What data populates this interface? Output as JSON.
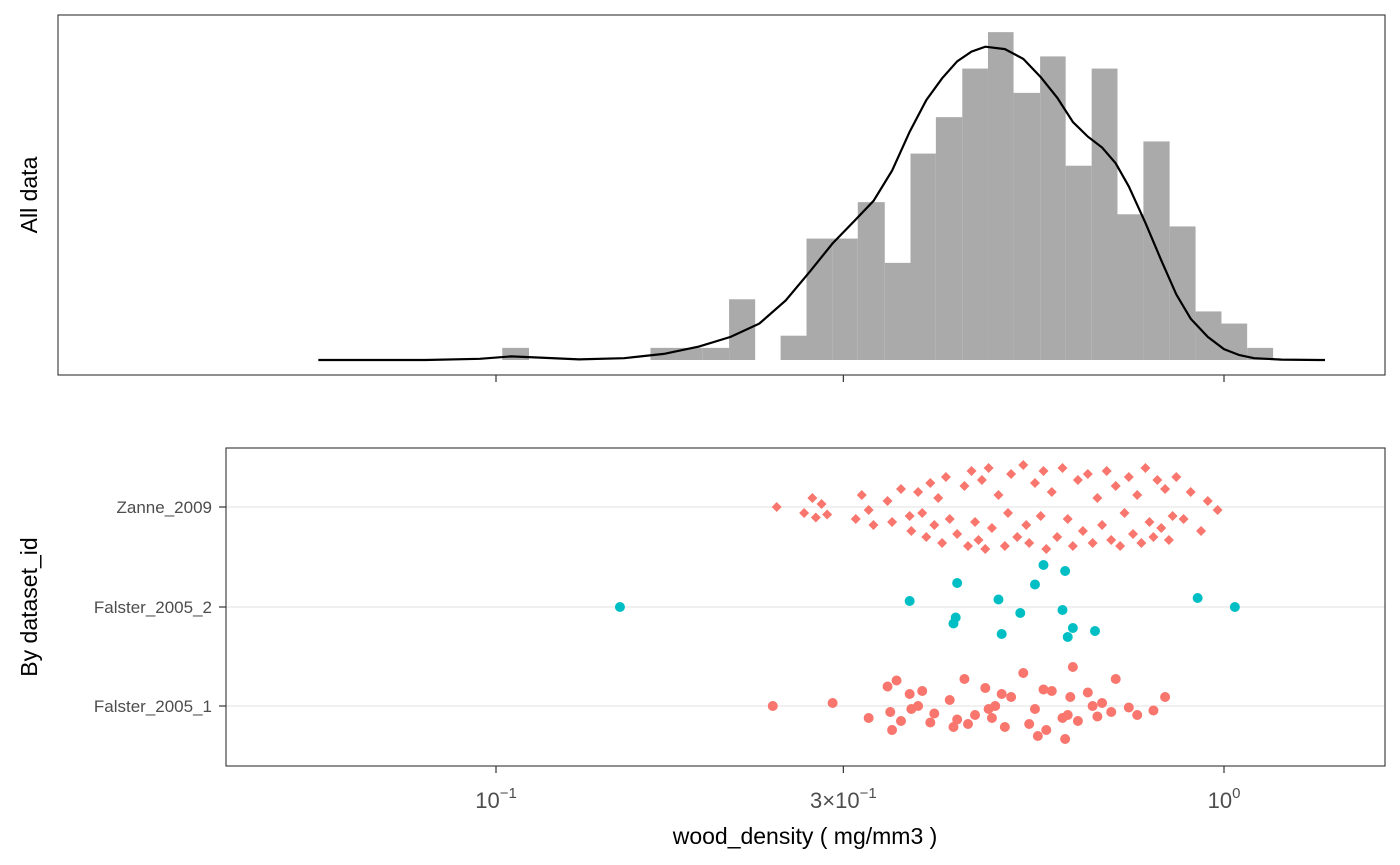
{
  "chart_data": [
    {
      "type": "histogram",
      "panel": "top",
      "ylabel": "All data",
      "x_scale": "log10",
      "xlim": [
        0.05,
        1.55
      ],
      "x_ticks": [
        0.1,
        0.3,
        1.0
      ],
      "bar_color": "#aaaaaa",
      "density_color": "#000000",
      "bins": [
        {
          "x0": 0.102,
          "x1": 0.111,
          "count": 1
        },
        {
          "x0": 0.163,
          "x1": 0.177,
          "count": 1
        },
        {
          "x0": 0.177,
          "x1": 0.192,
          "count": 1
        },
        {
          "x0": 0.192,
          "x1": 0.209,
          "count": 1
        },
        {
          "x0": 0.209,
          "x1": 0.227,
          "count": 5
        },
        {
          "x0": 0.227,
          "x1": 0.246,
          "count": 0
        },
        {
          "x0": 0.246,
          "x1": 0.267,
          "count": 2
        },
        {
          "x0": 0.267,
          "x1": 0.29,
          "count": 10
        },
        {
          "x0": 0.29,
          "x1": 0.314,
          "count": 10
        },
        {
          "x0": 0.314,
          "x1": 0.342,
          "count": 13
        },
        {
          "x0": 0.342,
          "x1": 0.371,
          "count": 8
        },
        {
          "x0": 0.371,
          "x1": 0.402,
          "count": 17
        },
        {
          "x0": 0.402,
          "x1": 0.437,
          "count": 20
        },
        {
          "x0": 0.437,
          "x1": 0.474,
          "count": 24
        },
        {
          "x0": 0.474,
          "x1": 0.514,
          "count": 27
        },
        {
          "x0": 0.514,
          "x1": 0.559,
          "count": 22
        },
        {
          "x0": 0.559,
          "x1": 0.606,
          "count": 25
        },
        {
          "x0": 0.606,
          "x1": 0.658,
          "count": 16
        },
        {
          "x0": 0.658,
          "x1": 0.714,
          "count": 24
        },
        {
          "x0": 0.714,
          "x1": 0.775,
          "count": 12
        },
        {
          "x0": 0.775,
          "x1": 0.842,
          "count": 18
        },
        {
          "x0": 0.842,
          "x1": 0.914,
          "count": 11
        },
        {
          "x0": 0.914,
          "x1": 0.992,
          "count": 4
        },
        {
          "x0": 0.992,
          "x1": 1.076,
          "count": 3
        },
        {
          "x0": 1.076,
          "x1": 1.168,
          "count": 1
        }
      ],
      "density": {
        "x": [
          0.057,
          0.08,
          0.095,
          0.105,
          0.115,
          0.13,
          0.15,
          0.17,
          0.19,
          0.21,
          0.23,
          0.25,
          0.27,
          0.29,
          0.31,
          0.33,
          0.35,
          0.37,
          0.39,
          0.41,
          0.43,
          0.45,
          0.47,
          0.5,
          0.53,
          0.56,
          0.59,
          0.62,
          0.65,
          0.68,
          0.71,
          0.74,
          0.78,
          0.82,
          0.86,
          0.9,
          0.95,
          1.0,
          1.05,
          1.1,
          1.2,
          1.35,
          1.5
        ],
        "y": [
          0.0,
          0.0,
          0.1,
          0.3,
          0.2,
          0.05,
          0.15,
          0.5,
          1.1,
          1.9,
          3.0,
          4.9,
          7.3,
          9.6,
          11.4,
          13.1,
          15.6,
          18.8,
          21.4,
          23.2,
          24.6,
          25.4,
          25.8,
          25.6,
          24.8,
          23.3,
          21.6,
          19.6,
          18.4,
          17.5,
          16.2,
          14.3,
          11.3,
          8.2,
          5.4,
          3.4,
          1.9,
          0.9,
          0.4,
          0.15,
          0.03,
          0.0,
          0.0
        ]
      },
      "ylim": [
        -1.2,
        28
      ]
    },
    {
      "type": "scatter",
      "panel": "bottom",
      "ylabel": "By  dataset_id",
      "xlabel": "wood_density  ( mg/mm3 )",
      "x_scale": "log10",
      "xlim": [
        0.05,
        1.55
      ],
      "x_tick_labels": [
        "10",
        "3×10",
        "10"
      ],
      "x_tick_exponents": [
        "−1",
        "−1",
        "0"
      ],
      "x_ticks": [
        0.1,
        0.3,
        1.0
      ],
      "categories": [
        "Zanne_2009",
        "Falster_2005_2",
        "Falster_2005_1"
      ],
      "series": [
        {
          "name": "Zanne_2009",
          "color": "#f8766d",
          "marker": "diamond",
          "x": [
            0.243,
            0.265,
            0.272,
            0.275,
            0.28,
            0.285,
            0.312,
            0.318,
            0.325,
            0.33,
            0.345,
            0.35,
            0.36,
            0.37,
            0.372,
            0.38,
            0.385,
            0.39,
            0.395,
            0.4,
            0.405,
            0.41,
            0.415,
            0.42,
            0.43,
            0.44,
            0.445,
            0.45,
            0.455,
            0.46,
            0.465,
            0.47,
            0.475,
            0.48,
            0.49,
            0.5,
            0.505,
            0.51,
            0.52,
            0.53,
            0.535,
            0.54,
            0.55,
            0.56,
            0.565,
            0.57,
            0.58,
            0.59,
            0.6,
            0.61,
            0.62,
            0.63,
            0.64,
            0.65,
            0.66,
            0.67,
            0.68,
            0.69,
            0.7,
            0.71,
            0.72,
            0.73,
            0.74,
            0.75,
            0.76,
            0.77,
            0.78,
            0.79,
            0.8,
            0.81,
            0.82,
            0.83,
            0.84,
            0.85,
            0.86,
            0.88,
            0.9,
            0.93,
            0.95,
            0.98
          ],
          "jitter": [
            0,
            0.2,
            -0.3,
            0.35,
            -0.1,
            0.25,
            0.4,
            -0.4,
            0.1,
            0.6,
            -0.2,
            0.5,
            -0.6,
            0.3,
            0.8,
            -0.5,
            0.2,
            1.0,
            -0.8,
            0.6,
            -0.3,
            1.2,
            -1.0,
            0.4,
            0.9,
            -0.7,
            1.3,
            -1.2,
            0.5,
            1.1,
            -0.9,
            1.4,
            -1.3,
            0.7,
            -0.4,
            1.3,
            0.2,
            -1.1,
            1.0,
            -1.4,
            0.6,
            1.2,
            -0.8,
            0.3,
            -1.2,
            1.4,
            -0.5,
            1.0,
            -1.3,
            0.4,
            1.3,
            -0.9,
            0.8,
            -1.1,
            1.2,
            -0.3,
            0.6,
            -1.2,
            1.1,
            -0.7,
            1.3,
            0.2,
            -1.0,
            0.9,
            -0.4,
            1.2,
            -1.3,
            0.5,
            1.0,
            -0.9,
            0.7,
            -0.6,
            1.1,
            0.3,
            -1.0,
            0.4,
            -0.5,
            0.8,
            -0.2,
            0.1
          ]
        },
        {
          "name": "Falster_2005_2",
          "color": "#00bfc4",
          "marker": "circle",
          "x": [
            0.148,
            0.37,
            0.425,
            0.428,
            0.43,
            0.49,
            0.495,
            0.525,
            0.55,
            0.565,
            0.6,
            0.605,
            0.61,
            0.62,
            0.665,
            0.92,
            1.035
          ],
          "jitter": [
            0.0,
            -0.2,
            0.55,
            0.35,
            -0.8,
            -0.25,
            0.9,
            0.2,
            -0.75,
            -1.4,
            0.1,
            -1.2,
            1.0,
            0.7,
            0.8,
            -0.3,
            0.0
          ]
        },
        {
          "name": "Falster_2005_1",
          "color": "#f8766d",
          "marker": "circle",
          "x": [
            0.24,
            0.29,
            0.325,
            0.345,
            0.348,
            0.35,
            0.355,
            0.36,
            0.37,
            0.372,
            0.38,
            0.385,
            0.395,
            0.4,
            0.42,
            0.425,
            0.43,
            0.44,
            0.445,
            0.455,
            0.47,
            0.475,
            0.48,
            0.485,
            0.495,
            0.5,
            0.51,
            0.53,
            0.54,
            0.55,
            0.555,
            0.565,
            0.57,
            0.58,
            0.6,
            0.605,
            0.61,
            0.615,
            0.62,
            0.63,
            0.65,
            0.66,
            0.67,
            0.68,
            0.7,
            0.71,
            0.74,
            0.76,
            0.8,
            0.83
          ],
          "jitter": [
            0.0,
            -0.1,
            0.4,
            -0.65,
            0.2,
            0.8,
            -0.85,
            0.5,
            -0.4,
            0.1,
            0.0,
            -0.5,
            0.55,
            0.25,
            -0.2,
            0.7,
            0.45,
            -0.9,
            0.6,
            0.3,
            -0.6,
            0.1,
            0.4,
            0.0,
            -0.4,
            0.7,
            -0.3,
            -1.1,
            0.6,
            0.1,
            1.0,
            -0.55,
            0.8,
            -0.5,
            0.4,
            1.1,
            0.3,
            -0.3,
            -1.3,
            0.5,
            -0.45,
            0.0,
            0.35,
            -0.1,
            0.2,
            -0.9,
            0.05,
            0.3,
            0.15,
            -0.3
          ],
          "jitter_scale_note": "vertical jitter in category-band units (~±0.37)"
        }
      ]
    }
  ]
}
